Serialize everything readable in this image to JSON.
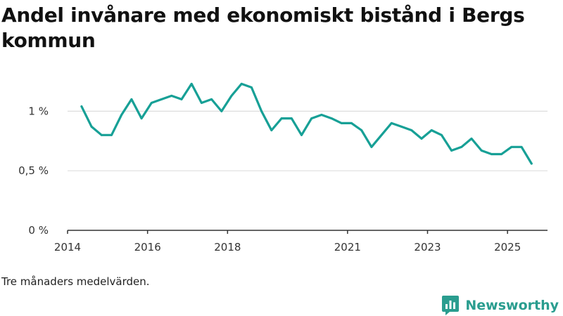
{
  "colors": {
    "line": "#17a096",
    "grid": "#dddddd",
    "axis": "#333333",
    "brand": "#2a9d8f"
  },
  "brand": {
    "name": "Newsworthy",
    "icon": "newsworthy-logo-icon"
  },
  "chart_data": {
    "type": "line",
    "title": "Andel invånare med ekonomiskt bistånd i Bergs kommun",
    "note": "Tre månaders medelvärden.",
    "xlabel": "",
    "ylabel": "",
    "xlim": [
      2014.0,
      2026.0
    ],
    "ylim": [
      0,
      1.25
    ],
    "y_ticks": [
      {
        "value": 0,
        "label": "0 %"
      },
      {
        "value": 0.5,
        "label": "0,5 %"
      },
      {
        "value": 1,
        "label": "1 %"
      }
    ],
    "x_ticks": [
      {
        "value": 2014.0,
        "label": "2014"
      },
      {
        "value": 2016.0,
        "label": "2016"
      },
      {
        "value": 2018.0,
        "label": "2018"
      },
      {
        "value": 2021.0,
        "label": "2021"
      },
      {
        "value": 2023.0,
        "label": "2023"
      },
      {
        "value": 2025.0,
        "label": "2025"
      }
    ],
    "series": [
      {
        "name": "Andel invånare med ekonomiskt bistånd",
        "x": [
          2014.35,
          2014.6,
          2014.85,
          2015.1,
          2015.35,
          2015.6,
          2015.85,
          2016.1,
          2016.35,
          2016.6,
          2016.85,
          2017.1,
          2017.35,
          2017.6,
          2017.85,
          2018.1,
          2018.35,
          2018.6,
          2018.85,
          2019.1,
          2019.35,
          2019.6,
          2019.85,
          2020.1,
          2020.35,
          2020.6,
          2020.85,
          2021.1,
          2021.35,
          2021.6,
          2021.85,
          2022.1,
          2022.35,
          2022.6,
          2022.85,
          2023.1,
          2023.35,
          2023.6,
          2023.85,
          2024.1,
          2024.35,
          2024.6,
          2024.85,
          2025.1,
          2025.35,
          2025.6
        ],
        "values": [
          1.04,
          0.87,
          0.8,
          0.8,
          0.97,
          1.1,
          0.94,
          1.07,
          1.1,
          1.13,
          1.1,
          1.23,
          1.07,
          1.1,
          1.0,
          1.13,
          1.23,
          1.2,
          1.0,
          0.84,
          0.94,
          0.94,
          0.8,
          0.94,
          0.97,
          0.94,
          0.9,
          0.9,
          0.84,
          0.7,
          0.8,
          0.9,
          0.87,
          0.84,
          0.77,
          0.84,
          0.8,
          0.67,
          0.7,
          0.77,
          0.67,
          0.64,
          0.64,
          0.7,
          0.7,
          0.56
        ]
      }
    ]
  }
}
